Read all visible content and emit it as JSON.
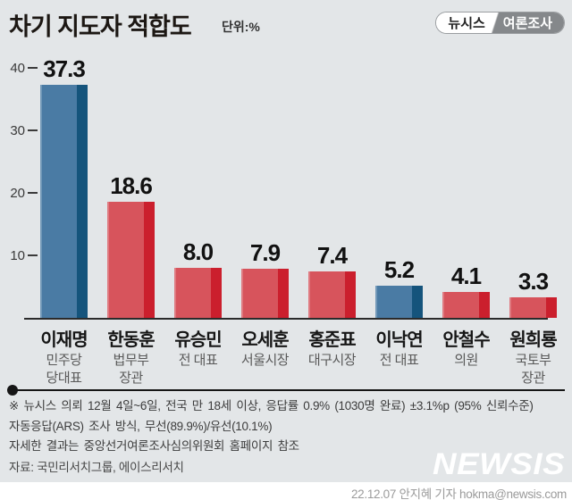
{
  "title": "차기 지도자 적합도",
  "unit_label": "단위:%",
  "badge": {
    "left": "뉴시스",
    "right": "여론조사"
  },
  "chart_data": {
    "type": "bar",
    "title": "차기 지도자 적합도",
    "unit": "%",
    "categories": [
      "이재명",
      "한동훈",
      "유승민",
      "오세훈",
      "홍준표",
      "이낙연",
      "안철수",
      "원희룡"
    ],
    "sublabels": [
      [
        "민주당",
        "당대표"
      ],
      [
        "법무부",
        "장관"
      ],
      [
        "전 대표"
      ],
      [
        "서울시장"
      ],
      [
        "대구시장"
      ],
      [
        "전 대표"
      ],
      [
        "의원"
      ],
      [
        "국토부",
        "장관"
      ]
    ],
    "values": [
      37.3,
      18.6,
      8.0,
      7.9,
      7.4,
      5.2,
      4.1,
      3.3
    ],
    "value_labels": [
      "37.3",
      "18.6",
      "8.0",
      "7.9",
      "7.4",
      "5.2",
      "4.1",
      "3.3"
    ],
    "series_color_key": [
      "blue",
      "red",
      "red",
      "red",
      "red",
      "blue",
      "red",
      "red"
    ],
    "colors": {
      "blue": "#4a7ba4",
      "blue_dark": "#15547c",
      "red": "#d7545c",
      "red_dark": "#cb1f2d"
    },
    "ylim": [
      0,
      40
    ],
    "yticks": [
      40,
      30,
      20,
      10
    ],
    "grid": false,
    "legend": "none"
  },
  "footnotes": [
    "※ 뉴시스 의뢰 12월 4일~6일, 전국 만 18세 이상, 응답률 0.9% (1030명 완료) ±3.1%p (95% 신뢰수준)",
    "자동응답(ARS) 조사 방식, 무선(89.9%)/유선(10.1%)",
    "자세한 결과는 중앙선거여론조사심의위원회 홈페이지 참조"
  ],
  "source": "자료: 국민리서치그룹, 에이스리서치",
  "watermark": "NEWSIS",
  "byline": "22.12.07 안지혜 기자 hokma@newsis.com"
}
